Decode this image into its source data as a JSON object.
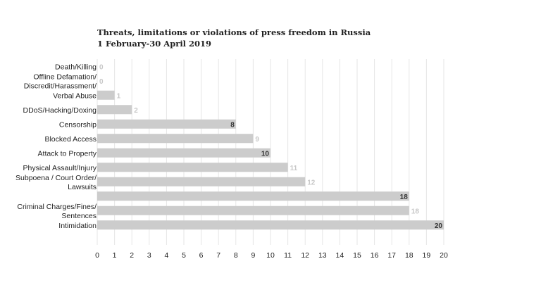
{
  "chart_data": {
    "type": "bar",
    "orientation": "horizontal",
    "title": "Threats, limitations or violations of press freedom in Russia",
    "subtitle": "1 February-30 April 2019",
    "categories": [
      "Death/Killing",
      "Offline Defamation/ Discredit/Harassment/",
      "Verbal Abuse",
      "DDoS/Hacking/Doxing",
      "Censorship",
      "Blocked Access",
      "Attack to Property",
      "Physical Assault/Injury",
      "Subpoena / Court Order/ Lawsuits",
      "",
      "Criminal Charges/Fines/ Sentences",
      "Intimidation"
    ],
    "category_lines": [
      [
        "Death/Killing"
      ],
      [
        "Offline Defamation/",
        "Discredit/Harassment/"
      ],
      [
        "Verbal Abuse"
      ],
      [
        "DDoS/Hacking/Doxing"
      ],
      [
        "Censorship"
      ],
      [
        "Blocked Access"
      ],
      [
        "Attack to Property"
      ],
      [
        "Physical Assault/Injury"
      ],
      [
        "Subpoena / Court Order/",
        "Lawsuits"
      ],
      [],
      [
        "Criminal Charges/Fines/",
        "Sentences"
      ],
      [
        "Intimidation"
      ]
    ],
    "values": [
      0,
      0,
      1,
      2,
      8,
      9,
      10,
      11,
      12,
      18,
      18,
      20
    ],
    "label_inside": [
      false,
      false,
      false,
      false,
      true,
      false,
      true,
      false,
      false,
      true,
      false,
      true
    ],
    "xlim": [
      0,
      20
    ],
    "xticks": [
      "0",
      "1",
      "2",
      "3",
      "4",
      "5",
      "6",
      "7",
      "8",
      "9",
      "10",
      "11",
      "12",
      "13",
      "14",
      "15",
      "16",
      "17",
      "18",
      "19",
      "20"
    ],
    "grid": true,
    "colors": {
      "bar": "#cccccc",
      "grid": "#e6e6e6",
      "label_inside": "#333333",
      "label_outside": "#c8c8c8"
    }
  }
}
